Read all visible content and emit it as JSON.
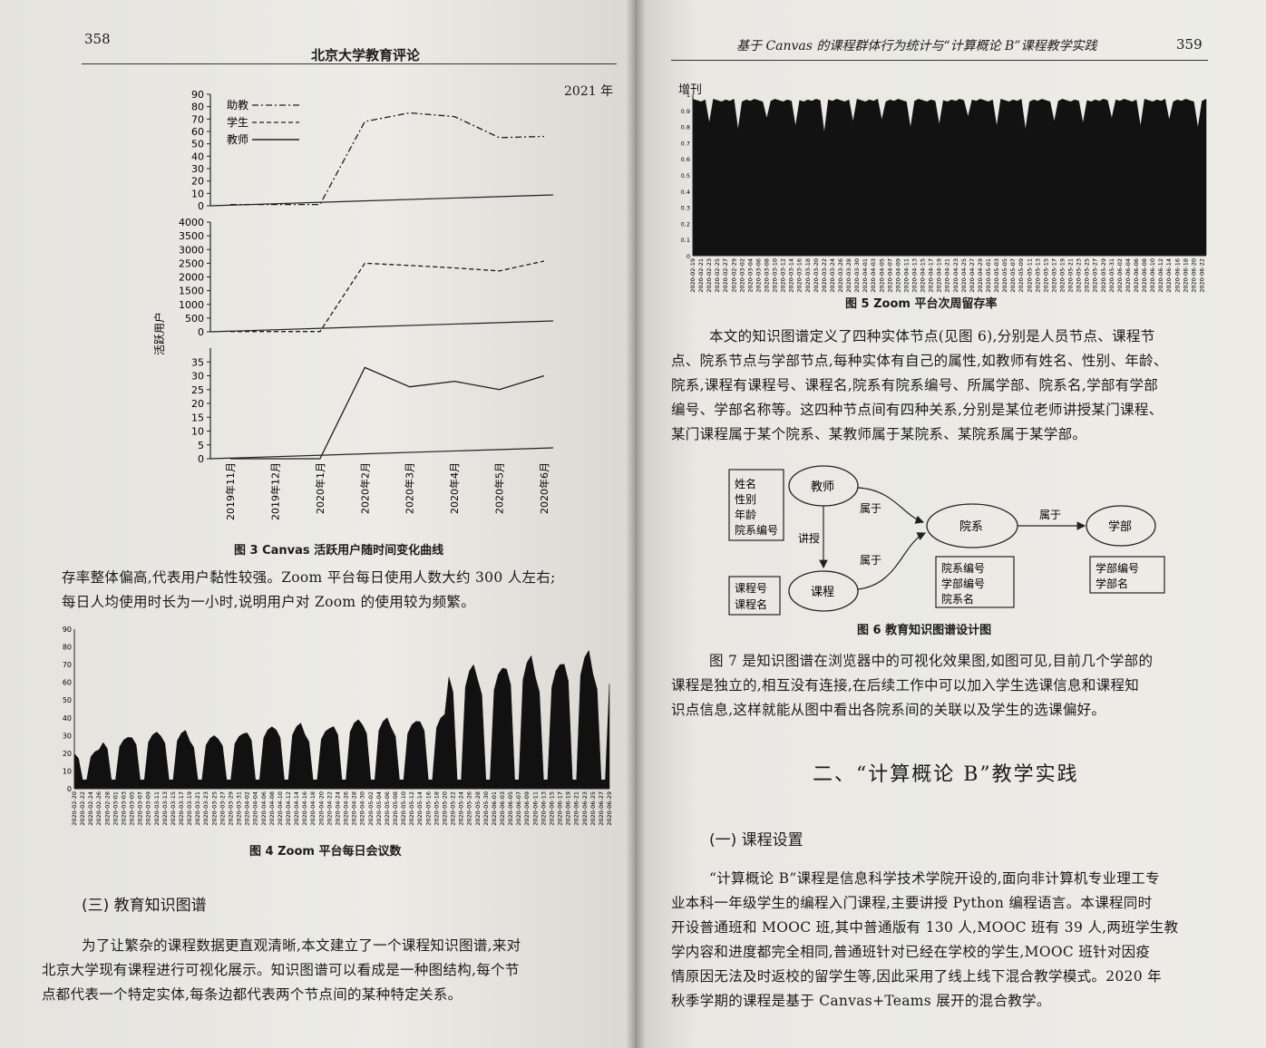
{
  "left_page": {
    "page_number": "358",
    "journal_title": "北京大学教育评论",
    "year": "2021 年",
    "fig3": {
      "caption": "图 3   Canvas 活跃用户随时间变化曲线",
      "ylabel": "活跃用户",
      "legend": [
        "助教",
        "学生",
        "教师"
      ]
    },
    "paragraph1": [
      "存率整体偏高,代表用户黏性较强。Zoom 平台每日使用人数大约 300 人左右;",
      "每日人均使用时长为一小时,说明用户对 Zoom 的使用较为频繁。"
    ],
    "fig4": {
      "caption": "图 4   Zoom 平台每日会议数"
    },
    "section3_title": "(三) 教育知识图谱",
    "paragraph2": [
      "为了让繁杂的课程数据更直观清晰,本文建立了一个课程知识图谱,来对",
      "北京大学现有课程进行可视化展示。知识图谱可以看成是一种图结构,每个节",
      "点都代表一个特定实体,每条边都代表两个节点间的某种特定关系。"
    ]
  },
  "right_page": {
    "running_title": "基于 Canvas 的课程群体行为统计与“计算概论 B”课程教学实践",
    "page_number": "359",
    "issue": "增刊",
    "fig5": {
      "caption": "图 5   Zoom 平台次周留存率"
    },
    "paragraph1": [
      "本文的知识图谱定义了四种实体节点(见图 6),分别是人员节点、课程节",
      "点、院系节点与学部节点,每种实体有自己的属性,如教师有姓名、性别、年龄、",
      "院系,课程有课程号、课程名,院系有院系编号、所属学部、院系名,学部有学部",
      "编号、学部名称等。这四种节点间有四种关系,分别是某位老师讲授某门课程、",
      "某门课程属于某个院系、某教师属于某院系、某院系属于某学部。"
    ],
    "fig6": {
      "caption": "图 6   教育知识图谱设计图",
      "nodes": {
        "teacher": "教师",
        "course": "课程",
        "department": "院系",
        "faculty": "学部"
      },
      "teacher_attrs": [
        "姓名",
        "性别",
        "年龄",
        "院系编号"
      ],
      "course_attrs": [
        "课程号",
        "课程名"
      ],
      "department_attrs": [
        "院系编号",
        "学部编号",
        "院系名"
      ],
      "faculty_attrs": [
        "学部编号",
        "学部名"
      ],
      "edges": {
        "teaches": "讲授",
        "belongs_1": "属于",
        "belongs_2": "属于",
        "belongs_3": "属于"
      }
    },
    "paragraph2": [
      "图 7 是知识图谱在浏览器中的可视化效果图,如图可见,目前几个学部的",
      "课程是独立的,相互没有连接,在后续工作中可以加入学生选课信息和课程知",
      "识点信息,这样就能从图中看出各院系间的关联以及学生的选课偏好。"
    ],
    "chapter_title": "二、“计算概论 B”教学实践",
    "section1_title": "(一) 课程设置",
    "paragraph3": [
      "“计算概论 B”课程是信息科学技术学院开设的,面向非计算机专业理工专",
      "业本科一年级学生的编程入门课程,主要讲授 Python 编程语言。本课程同时",
      "开设普通班和 MOOC 班,其中普通版有 130 人,MOOC 班有 39 人,两班学生教",
      "学内容和进度都完全相同,普通班针对已经在学校的学生,MOOC 班针对因疫",
      "情原因无法及时返校的留学生等,因此采用了线上线下混合教学模式。2020 年",
      "秋季学期的课程是基于 Canvas+Teams 展开的混合教学。"
    ]
  },
  "chart_data": [
    {
      "type": "line",
      "name_ref": "fig3-top",
      "categories": [
        "2019年11月",
        "2019年12月",
        "2020年1月",
        "2020年2月",
        "2020年3月",
        "2020年4月",
        "2020年5月",
        "2020年6月"
      ],
      "series": [
        {
          "name": "助教",
          "values": [
            1,
            1,
            1,
            68,
            75,
            72,
            55,
            56
          ]
        }
      ],
      "yticks": [
        "0",
        "10",
        "20",
        "30",
        "40",
        "50",
        "60",
        "70",
        "80",
        "90"
      ],
      "ylim": [
        0,
        90
      ]
    },
    {
      "type": "line",
      "name_ref": "fig3-middle",
      "categories": [
        "2019年11月",
        "2019年12月",
        "2020年1月",
        "2020年2月",
        "2020年3月",
        "2020年4月",
        "2020年5月",
        "2020年6月"
      ],
      "series": [
        {
          "name": "学生",
          "values": [
            10,
            10,
            10,
            2500,
            2420,
            2330,
            2220,
            2580
          ]
        }
      ],
      "yticks": [
        "0",
        "500",
        "1000",
        "1500",
        "2000",
        "2500",
        "3000",
        "3500",
        "4000"
      ],
      "ylim": [
        0,
        4000
      ]
    },
    {
      "type": "line",
      "name_ref": "fig3-bottom",
      "categories": [
        "2019年11月",
        "2019年12月",
        "2020年1月",
        "2020年2月",
        "2020年3月",
        "2020年4月",
        "2020年5月",
        "2020年6月"
      ],
      "series": [
        {
          "name": "教师",
          "values": [
            0,
            0,
            0,
            33,
            26,
            28,
            25,
            30
          ]
        }
      ],
      "yticks": [
        "0",
        "5",
        "10",
        "15",
        "20",
        "25",
        "30",
        "35"
      ],
      "ylim": [
        0,
        40
      ]
    },
    {
      "type": "area",
      "name_ref": "fig4",
      "x_start": "2020-02-20",
      "x_end": "2020-06-29",
      "x_label_step_days": 2,
      "yticks": [
        "0",
        "10",
        "20",
        "30",
        "40",
        "50",
        "60",
        "70",
        "80",
        "90"
      ],
      "ylim": [
        0,
        90
      ],
      "weekly_peaks": [
        22,
        29,
        32,
        33,
        30,
        31,
        35,
        37,
        34,
        39,
        40,
        38,
        42,
        70,
        68,
        75,
        70,
        78,
        72,
        80,
        76
      ],
      "weekend_low": 5
    },
    {
      "type": "area",
      "name_ref": "fig5",
      "x_start": "2020-02-19",
      "x_end": "2020-06-23",
      "x_label_step_days": 2,
      "yticks": [
        "0",
        "0.1",
        "0.2",
        "0.3",
        "0.4",
        "0.5",
        "0.6",
        "0.7",
        "0.8",
        "0.9",
        "1"
      ],
      "ylim": [
        0,
        1
      ],
      "level": 0.97,
      "dips": [
        0.82,
        0.78,
        0.85,
        0.8,
        0.76,
        0.83,
        0.84,
        0.79,
        0.81,
        0.86,
        0.8,
        0.78,
        0.83,
        0.82,
        0.85,
        0.8,
        0.84,
        0.79,
        0.82
      ]
    }
  ]
}
